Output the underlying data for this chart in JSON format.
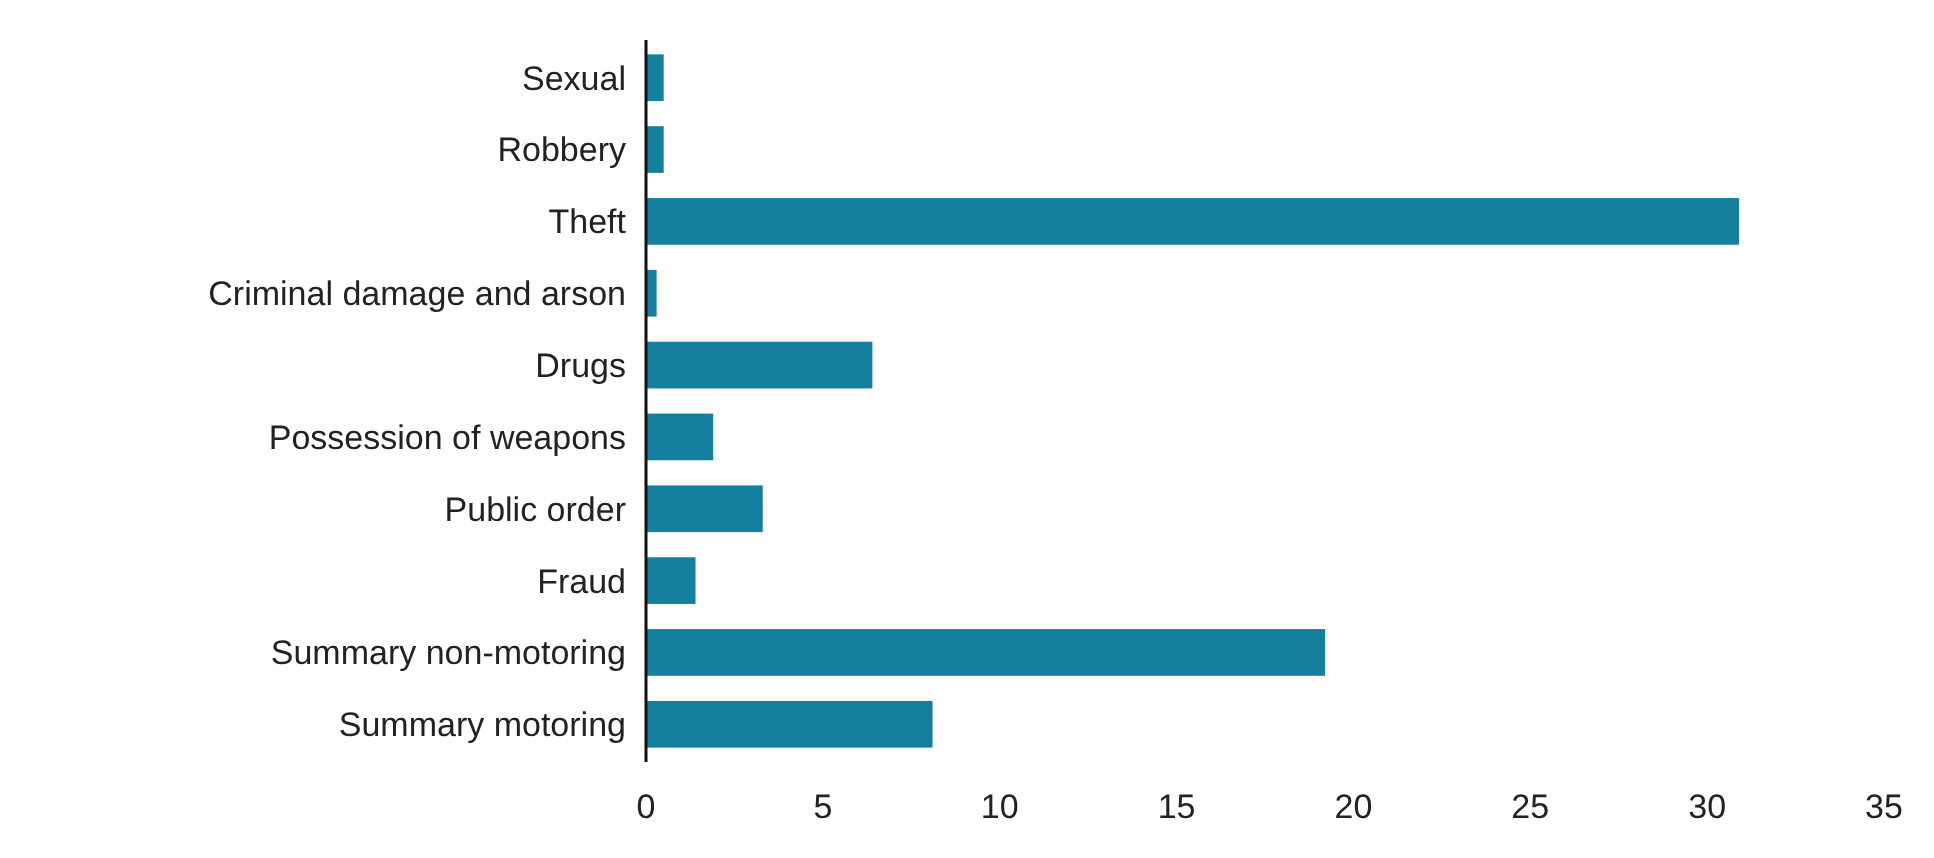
{
  "chart_data": {
    "type": "bar",
    "orientation": "horizontal",
    "categories": [
      "Sexual",
      "Robbery",
      "Theft",
      "Criminal damage and arson",
      "Drugs",
      "Possession of weapons",
      "Public order",
      "Fraud",
      "Summary non-motoring",
      "Summary motoring"
    ],
    "values": [
      0.5,
      0.5,
      30.9,
      0.3,
      6.4,
      1.9,
      3.3,
      1.4,
      19.2,
      8.1
    ],
    "color": "#157f9e",
    "xlim": [
      0,
      35
    ],
    "xticks": [
      0,
      5,
      10,
      15,
      20,
      25,
      30,
      35
    ],
    "grid": false
  }
}
